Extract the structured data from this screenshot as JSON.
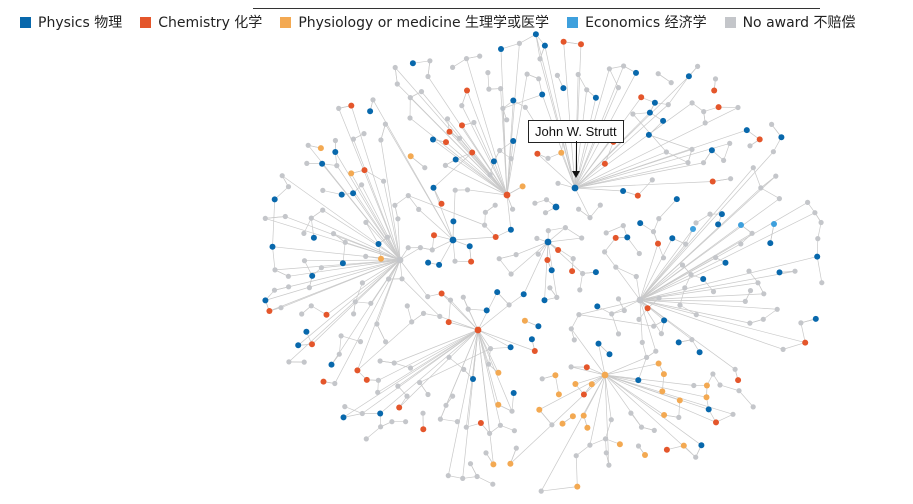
{
  "legend": {
    "items": [
      {
        "label": "Physics 物理",
        "color": "#0868ac"
      },
      {
        "label": "Chemistry 化学",
        "color": "#e4562b"
      },
      {
        "label": "Physiology or medicine 生理学或医学",
        "color": "#f3a952"
      },
      {
        "label": "Economics 经济学",
        "color": "#3ea0dd"
      },
      {
        "label": "No award 不赔偿",
        "color": "#c4c6ca"
      }
    ]
  },
  "tooltip": {
    "label": "John W. Strutt"
  },
  "colors": {
    "physics": "#0868ac",
    "chemistry": "#e4562b",
    "medicine": "#f3a952",
    "economics": "#3ea0dd",
    "none": "#c4c6ca",
    "edge": "#c9c9c9"
  }
}
